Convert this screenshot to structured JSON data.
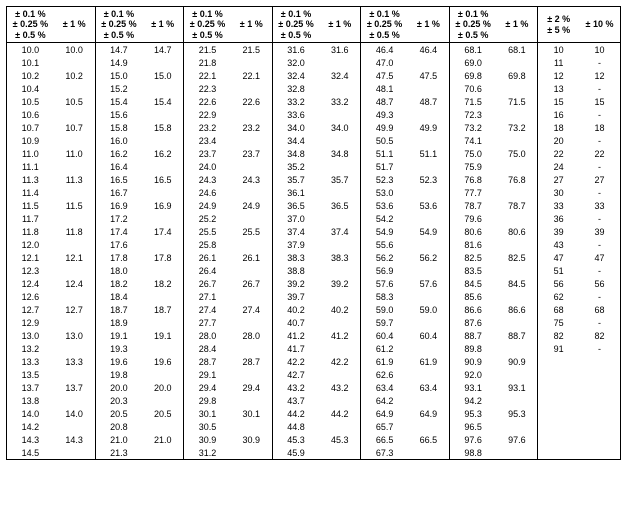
{
  "headers": {
    "stack": "± 0.1 %<br>± 0.25 %<br>± 0.5 %",
    "one": "± 1 %",
    "two_five": "± 2 %<br>± 5 %",
    "ten": "± 10 %"
  },
  "columns": [
    [
      "10.0",
      "10.1",
      "10.2",
      "10.4",
      "10.5",
      "10.6",
      "10.7",
      "10.9",
      "11.0",
      "11.1",
      "11.3",
      "11.4",
      "11.5",
      "11.7",
      "11.8",
      "12.0",
      "12.1",
      "12.3",
      "12.4",
      "12.6",
      "12.7",
      "12.9",
      "13.0",
      "13.2",
      "13.3",
      "13.5",
      "13.7",
      "13.8",
      "14.0",
      "14.2",
      "14.3",
      "14.5"
    ],
    [
      "10.0",
      "",
      "10.2",
      "",
      "10.5",
      "",
      "10.7",
      "",
      "11.0",
      "",
      "11.3",
      "",
      "11.5",
      "",
      "11.8",
      "",
      "12.1",
      "",
      "12.4",
      "",
      "12.7",
      "",
      "13.0",
      "",
      "13.3",
      "",
      "13.7",
      "",
      "14.0",
      "",
      "14.3",
      ""
    ],
    [
      "14.7",
      "14.9",
      "15.0",
      "15.2",
      "15.4",
      "15.6",
      "15.8",
      "16.0",
      "16.2",
      "16.4",
      "16.5",
      "16.7",
      "16.9",
      "17.2",
      "17.4",
      "17.6",
      "17.8",
      "18.0",
      "18.2",
      "18.4",
      "18.7",
      "18.9",
      "19.1",
      "19.3",
      "19.6",
      "19.8",
      "20.0",
      "20.3",
      "20.5",
      "20.8",
      "21.0",
      "21.3"
    ],
    [
      "14.7",
      "",
      "15.0",
      "",
      "15.4",
      "",
      "15.8",
      "",
      "16.2",
      "",
      "16.5",
      "",
      "16.9",
      "",
      "17.4",
      "",
      "17.8",
      "",
      "18.2",
      "",
      "18.7",
      "",
      "19.1",
      "",
      "19.6",
      "",
      "20.0",
      "",
      "20.5",
      "",
      "21.0",
      ""
    ],
    [
      "21.5",
      "21.8",
      "22.1",
      "22.3",
      "22.6",
      "22.9",
      "23.2",
      "23.4",
      "23.7",
      "24.0",
      "24.3",
      "24.6",
      "24.9",
      "25.2",
      "25.5",
      "25.8",
      "26.1",
      "26.4",
      "26.7",
      "27.1",
      "27.4",
      "27.7",
      "28.0",
      "28.4",
      "28.7",
      "29.1",
      "29.4",
      "29.8",
      "30.1",
      "30.5",
      "30.9",
      "31.2"
    ],
    [
      "21.5",
      "",
      "22.1",
      "",
      "22.6",
      "",
      "23.2",
      "",
      "23.7",
      "",
      "24.3",
      "",
      "24.9",
      "",
      "25.5",
      "",
      "26.1",
      "",
      "26.7",
      "",
      "27.4",
      "",
      "28.0",
      "",
      "28.7",
      "",
      "29.4",
      "",
      "30.1",
      "",
      "30.9",
      ""
    ],
    [
      "31.6",
      "32.0",
      "32.4",
      "32.8",
      "33.2",
      "33.6",
      "34.0",
      "34.4",
      "34.8",
      "35.2",
      "35.7",
      "36.1",
      "36.5",
      "37.0",
      "37.4",
      "37.9",
      "38.3",
      "38.8",
      "39.2",
      "39.7",
      "40.2",
      "40.7",
      "41.2",
      "41.7",
      "42.2",
      "42.7",
      "43.2",
      "43.7",
      "44.2",
      "44.8",
      "45.3",
      "45.9"
    ],
    [
      "31.6",
      "",
      "32.4",
      "",
      "33.2",
      "",
      "34.0",
      "",
      "34.8",
      "",
      "35.7",
      "",
      "36.5",
      "",
      "37.4",
      "",
      "38.3",
      "",
      "39.2",
      "",
      "40.2",
      "",
      "41.2",
      "",
      "42.2",
      "",
      "43.2",
      "",
      "44.2",
      "",
      "45.3",
      ""
    ],
    [
      "46.4",
      "47.0",
      "47.5",
      "48.1",
      "48.7",
      "49.3",
      "49.9",
      "50.5",
      "51.1",
      "51.7",
      "52.3",
      "53.0",
      "53.6",
      "54.2",
      "54.9",
      "55.6",
      "56.2",
      "56.9",
      "57.6",
      "58.3",
      "59.0",
      "59.7",
      "60.4",
      "61.2",
      "61.9",
      "62.6",
      "63.4",
      "64.2",
      "64.9",
      "65.7",
      "66.5",
      "67.3"
    ],
    [
      "46.4",
      "",
      "47.5",
      "",
      "48.7",
      "",
      "49.9",
      "",
      "51.1",
      "",
      "52.3",
      "",
      "53.6",
      "",
      "54.9",
      "",
      "56.2",
      "",
      "57.6",
      "",
      "59.0",
      "",
      "60.4",
      "",
      "61.9",
      "",
      "63.4",
      "",
      "64.9",
      "",
      "66.5",
      ""
    ],
    [
      "68.1",
      "69.0",
      "69.8",
      "70.6",
      "71.5",
      "72.3",
      "73.2",
      "74.1",
      "75.0",
      "75.9",
      "76.8",
      "77.7",
      "78.7",
      "79.6",
      "80.6",
      "81.6",
      "82.5",
      "83.5",
      "84.5",
      "85.6",
      "86.6",
      "87.6",
      "88.7",
      "89.8",
      "90.9",
      "92.0",
      "93.1",
      "94.2",
      "95.3",
      "96.5",
      "97.6",
      "98.8"
    ],
    [
      "68.1",
      "",
      "69.8",
      "",
      "71.5",
      "",
      "73.2",
      "",
      "75.0",
      "",
      "76.8",
      "",
      "78.7",
      "",
      "80.6",
      "",
      "82.5",
      "",
      "84.5",
      "",
      "86.6",
      "",
      "88.7",
      "",
      "90.9",
      "",
      "93.1",
      "",
      "95.3",
      "",
      "97.6",
      ""
    ],
    [
      "10",
      "11",
      "12",
      "13",
      "15",
      "16",
      "18",
      "20",
      "22",
      "24",
      "27",
      "30",
      "33",
      "36",
      "39",
      "43",
      "47",
      "51",
      "56",
      "62",
      "68",
      "75",
      "82",
      "91",
      "",
      "",
      "",
      "",
      "",
      "",
      "",
      ""
    ],
    [
      "10",
      "-",
      "12",
      "-",
      "15",
      "-",
      "18",
      "-",
      "22",
      "-",
      "27",
      "-",
      "33",
      "-",
      "39",
      "-",
      "47",
      "-",
      "56",
      "-",
      "68",
      "-",
      "82",
      "-",
      "",
      "",
      "",
      "",
      "",
      "",
      "",
      ""
    ]
  ]
}
